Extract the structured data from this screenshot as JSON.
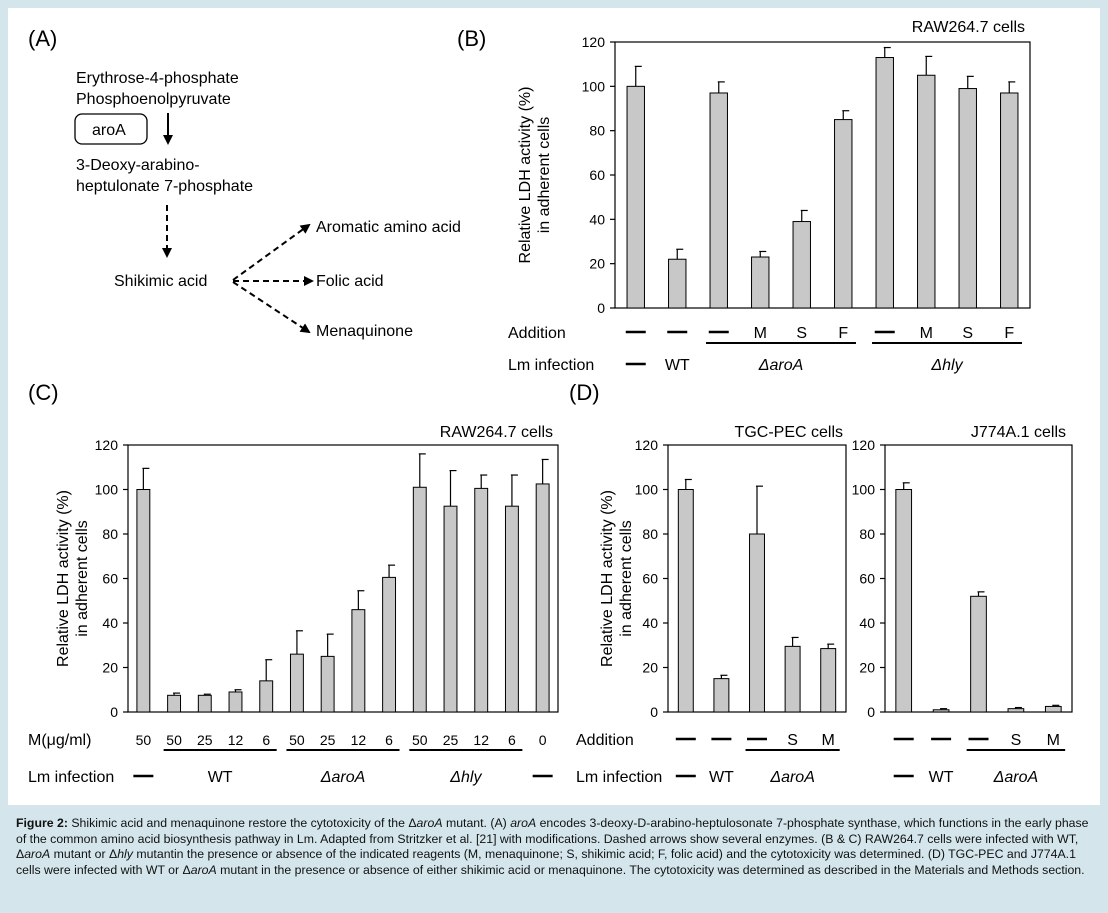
{
  "panels": {
    "A": {
      "label": "(A)",
      "start1": "Erythrose-4-phosphate",
      "start2": "Phosphoenolpyruvate",
      "enzyme": "aroA",
      "intermediate1": "3-Deoxy-arabino-",
      "intermediate2": "heptulonate 7-phosphate",
      "hub": "Shikimic acid",
      "products": [
        "Aromatic amino acid",
        "Folic acid",
        "Menaquinone"
      ]
    },
    "B": {
      "label": "(B)"
    },
    "C": {
      "label": "(C)"
    },
    "D": {
      "label": "(D)"
    }
  },
  "chart_data": [
    {
      "id": "B",
      "type": "bar",
      "title": "RAW264.7 cells",
      "ylabel": "Relative LDH activity (%)\nin adherent cells",
      "ylim": [
        0,
        120
      ],
      "yticks": [
        0,
        20,
        40,
        60,
        80,
        100,
        120
      ],
      "addition_label": "Addition",
      "infection_label": "Lm infection",
      "addition": [
        "—",
        "—",
        "—",
        "M",
        "S",
        "F",
        "—",
        "M",
        "S",
        "F"
      ],
      "infection_groups": [
        {
          "label": "—",
          "span": [
            0,
            0
          ],
          "italic": false
        },
        {
          "label": "WT",
          "span": [
            1,
            1
          ],
          "italic": false
        },
        {
          "label": "ΔaroA",
          "span": [
            2,
            5
          ],
          "italic": true
        },
        {
          "label": "Δhly",
          "span": [
            6,
            9
          ],
          "italic": true
        }
      ],
      "values": [
        100,
        22,
        97,
        23,
        39,
        85,
        113,
        105,
        99,
        97
      ],
      "errors": [
        9,
        4.5,
        5,
        2.5,
        5,
        4,
        4.5,
        8.5,
        5.5,
        5
      ],
      "bar_color": "#c8c8c8",
      "grid": false
    },
    {
      "id": "C",
      "type": "bar",
      "title": "RAW264.7 cells",
      "ylabel": "Relative LDH activity (%)\nin adherent cells",
      "ylim": [
        0,
        120
      ],
      "yticks": [
        0,
        20,
        40,
        60,
        80,
        100,
        120
      ],
      "addition_label": "M(μg/ml)",
      "infection_label": "Lm infection",
      "addition": [
        "50",
        "50",
        "25",
        "12",
        "6",
        "50",
        "25",
        "12",
        "6",
        "50",
        "25",
        "12",
        "6",
        "0"
      ],
      "infection_groups": [
        {
          "label": "—",
          "span": [
            0,
            0
          ],
          "italic": false
        },
        {
          "label": "WT",
          "span": [
            1,
            4
          ],
          "italic": false
        },
        {
          "label": "ΔaroA",
          "span": [
            5,
            8
          ],
          "italic": true
        },
        {
          "label": "Δhly",
          "span": [
            9,
            12
          ],
          "italic": true
        },
        {
          "label": "—",
          "span": [
            13,
            13
          ],
          "italic": false
        }
      ],
      "values": [
        100,
        7.5,
        7.5,
        9,
        14,
        26,
        25,
        46,
        60.5,
        101,
        92.5,
        100.5,
        92.5,
        102.5
      ],
      "errors": [
        9.5,
        1,
        0.5,
        1,
        9.5,
        10.5,
        10,
        8.5,
        5.5,
        15,
        16,
        6,
        14,
        11
      ],
      "bar_color": "#c8c8c8",
      "grid": false
    },
    {
      "id": "D1",
      "type": "bar",
      "title": "TGC-PEC cells",
      "ylabel": "Relative LDH activity (%)\nin adherent cells",
      "ylim": [
        0,
        120
      ],
      "yticks": [
        0,
        20,
        40,
        60,
        80,
        100,
        120
      ],
      "addition_label": "Addition",
      "infection_label": "Lm infection",
      "addition": [
        "—",
        "—",
        "—",
        "S",
        "M"
      ],
      "infection_groups": [
        {
          "label": "—",
          "span": [
            0,
            0
          ],
          "italic": false
        },
        {
          "label": "WT",
          "span": [
            1,
            1
          ],
          "italic": false
        },
        {
          "label": "ΔaroA",
          "span": [
            2,
            4
          ],
          "italic": true
        }
      ],
      "values": [
        100,
        15,
        80,
        29.5,
        28.5
      ],
      "errors": [
        4.5,
        1.5,
        21.5,
        4,
        2
      ],
      "bar_color": "#c8c8c8",
      "grid": false
    },
    {
      "id": "D2",
      "type": "bar",
      "title": "J774A.1 cells",
      "ylim": [
        0,
        120
      ],
      "yticks": [
        0,
        20,
        40,
        60,
        80,
        100,
        120
      ],
      "addition": [
        "—",
        "—",
        "—",
        "S",
        "M"
      ],
      "infection_groups": [
        {
          "label": "—",
          "span": [
            0,
            0
          ],
          "italic": false
        },
        {
          "label": "WT",
          "span": [
            1,
            1
          ],
          "italic": false
        },
        {
          "label": "ΔaroA",
          "span": [
            2,
            4
          ],
          "italic": true
        }
      ],
      "values": [
        100,
        1,
        52,
        1.5,
        2.5
      ],
      "errors": [
        3,
        0.5,
        2,
        0.5,
        0.5
      ],
      "bar_color": "#c8c8c8",
      "grid": false
    }
  ],
  "caption": {
    "head": "Figure 2:",
    "segments": [
      {
        "t": " Shikimic acid and menaquinone restore the cytotoxicity of the Δ"
      },
      {
        "t": "aroA",
        "i": true
      },
      {
        "t": " mutant. (A) "
      },
      {
        "t": "aroA",
        "i": true
      },
      {
        "t": " encodes 3-deoxy-D-arabino-heptulosonate 7-phosphate synthase, which functions in the early phase of the common amino acid biosynthesis pathway in Lm. Adapted from Stritzker et al. [21] with modifications. Dashed arrows show several enzymes. (B & C) RAW264.7 cells were infected with WT, Δ"
      },
      {
        "t": "aroA",
        "i": true
      },
      {
        "t": " mutant or Δ"
      },
      {
        "t": "hly",
        "i": true
      },
      {
        "t": " mutantin the presence or absence of the indicated reagents (M, menaquinone; S, shikimic acid; F, folic acid) and the cytotoxicity was determined. (D) TGC-PEC and J774A.1 cells were infected with WT or Δ"
      },
      {
        "t": "aroA",
        "i": true
      },
      {
        "t": " mutant in the presence or absence of either shikimic acid or menaquinone. The cytotoxicity was determined as described in the Materials and Methods section."
      }
    ]
  }
}
